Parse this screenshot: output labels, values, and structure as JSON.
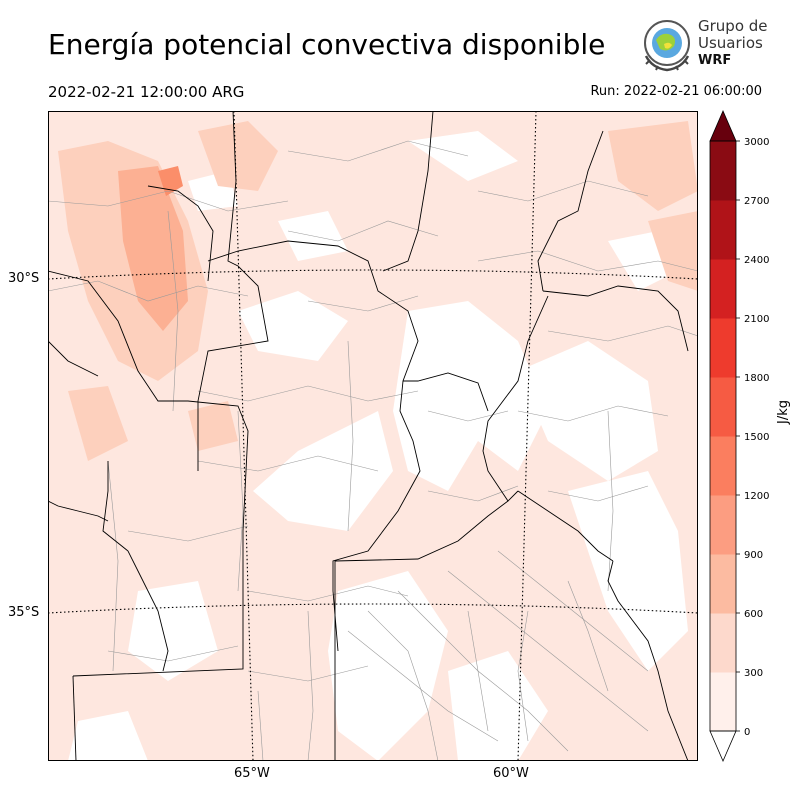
{
  "header": {
    "title": "Energía potencial convectiva disponible",
    "valid_time": "2022-02-21 12:00:00 ARG",
    "run_time": "Run: 2022-02-21 06:00:00"
  },
  "logo": {
    "line1": "Grupo de",
    "line2": "Usuarios",
    "line3": "WRF",
    "icon": "wrf-globe-logo"
  },
  "map": {
    "lat_labels": [
      "30°S",
      "35°S"
    ],
    "lon_labels": [
      "65°W",
      "60°W"
    ],
    "field": "CAPE",
    "colors": {
      "lowest": "#fee7df",
      "low": "#fdd0bd",
      "mid": "#fcb093",
      "higher": "#fb8e6a",
      "border": "#000000",
      "department": "#9a9a9a"
    }
  },
  "colorbar": {
    "unit_label": "J/kg",
    "ticks": [
      "0",
      "300",
      "600",
      "900",
      "1200",
      "1500",
      "1800",
      "2100",
      "2400",
      "2700",
      "3000"
    ],
    "colors": [
      "#fff0eb",
      "#fdd9cc",
      "#fcbba1",
      "#fc9d81",
      "#fb7e5f",
      "#f65b43",
      "#ee3b2d",
      "#d42121",
      "#b01318",
      "#8a0b13",
      "#67000d"
    ],
    "extend": "both"
  }
}
